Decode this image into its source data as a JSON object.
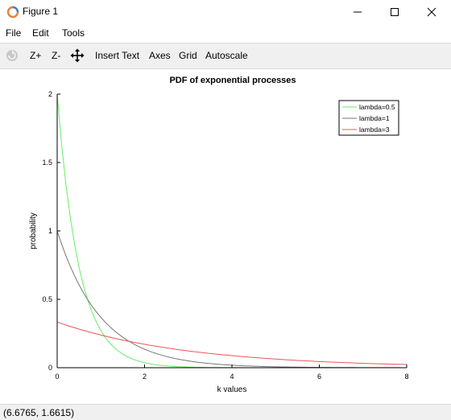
{
  "window": {
    "title": "Figure 1",
    "controls": {
      "minimize": "minimize-icon",
      "maximize": "maximize-icon",
      "close": "close-icon"
    }
  },
  "menu": {
    "items": [
      "File",
      "Edit",
      "Tools"
    ]
  },
  "toolbar": {
    "rotate_icon": "rotate-icon",
    "zoom_in_label": "Z+",
    "zoom_out_label": "Z-",
    "pan_icon": "pan-icon",
    "insert_text_label": "Insert Text",
    "axes_label": "Axes",
    "grid_label": "Grid",
    "autoscale_label": "Autoscale"
  },
  "status": {
    "coordinates": "(6.6765, 1.6615)"
  },
  "chart_data": {
    "type": "line",
    "title": "PDF of exponential processes",
    "xlabel": "k values",
    "ylabel": "probability",
    "xlim": [
      0,
      8
    ],
    "ylim": [
      0,
      2
    ],
    "xticks": [
      "0",
      "2",
      "4",
      "6",
      "8"
    ],
    "yticks": [
      "0",
      "0.5",
      "1",
      "1.5",
      "2"
    ],
    "grid": false,
    "legend_position": "top-right",
    "x_step": 0.1,
    "series": [
      {
        "name": "lambda=0.5",
        "color": "#66ee66",
        "function": "2*exp(-2*k)"
      },
      {
        "name": "lambda=1",
        "color": "#777777",
        "function": "exp(-k)"
      },
      {
        "name": "lambda=3",
        "color": "#ee5555",
        "function": "(1/3)*exp(-k/3)"
      }
    ]
  }
}
